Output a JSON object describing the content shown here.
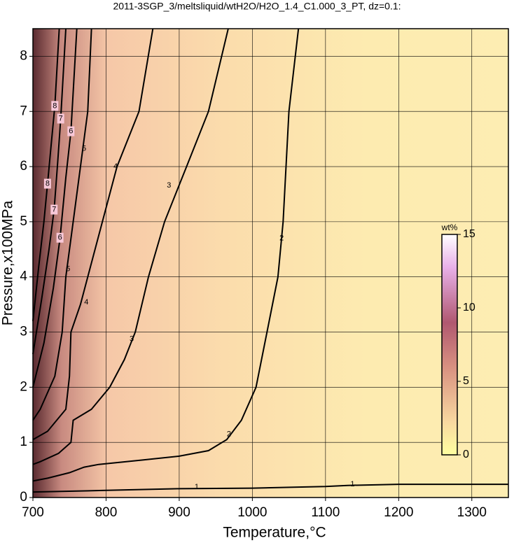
{
  "chart_data": {
    "type": "contour",
    "title": "2011-3SGP_3/meltsliquid/wtH2O/H2O_1.4_C1.000_3_PT, dz=0.1:",
    "xlabel": "Temperature,°C",
    "ylabel": "Pressure,x100MPa",
    "xlim": [
      700,
      1350
    ],
    "ylim": [
      0,
      8.5
    ],
    "xticks": [
      700,
      800,
      900,
      1000,
      1100,
      1200,
      1300
    ],
    "yticks": [
      0,
      1,
      2,
      3,
      4,
      5,
      6,
      7,
      8
    ],
    "grid": true,
    "colorbar": {
      "label": "wt%",
      "lim": [
        0,
        15
      ],
      "ticks": [
        0,
        5,
        10,
        15
      ]
    },
    "contours": [
      {
        "level": 1,
        "x": [
          700,
          800,
          900,
          1000,
          1100,
          1130,
          1200,
          1350
        ],
        "y": [
          0.1,
          0.13,
          0.16,
          0.17,
          0.2,
          0.22,
          0.24,
          0.24
        ],
        "labels": [
          {
            "x": 924,
            "y": 0.19
          },
          {
            "x": 1137,
            "y": 0.24
          }
        ]
      },
      {
        "level": 2,
        "x": [
          700,
          720,
          750,
          770,
          790,
          850,
          900,
          940,
          965,
          985,
          1005,
          1020,
          1035,
          1042,
          1050,
          1063
        ],
        "y": [
          0.3,
          0.35,
          0.45,
          0.55,
          0.6,
          0.68,
          0.75,
          0.85,
          1.05,
          1.4,
          2,
          3,
          4,
          5,
          7,
          8.5
        ],
        "labels": [
          {
            "x": 968,
            "y": 1.15
          },
          {
            "x": 1040,
            "y": 4.7
          }
        ]
      },
      {
        "level": 3,
        "x": [
          700,
          710,
          735,
          752,
          755,
          780,
          805,
          825,
          840,
          858,
          880,
          910,
          940,
          967
        ],
        "y": [
          0.6,
          0.65,
          0.8,
          1.0,
          1.4,
          1.6,
          2,
          2.5,
          3,
          4,
          5,
          6,
          7,
          8.5
        ],
        "labels": [
          {
            "x": 835,
            "y": 2.87
          },
          {
            "x": 886,
            "y": 5.66
          }
        ]
      },
      {
        "level": 4,
        "x": [
          700,
          720,
          745,
          750,
          752,
          765,
          775,
          795,
          815,
          845,
          864
        ],
        "y": [
          1.05,
          1.2,
          1.6,
          2.2,
          3,
          3.5,
          4,
          5,
          6,
          7,
          8.5
        ],
        "labels": [
          {
            "x": 773,
            "y": 3.54
          },
          {
            "x": 813,
            "y": 6.0
          }
        ]
      },
      {
        "level": 5,
        "x": [
          700,
          710,
          730,
          740,
          745,
          755,
          765,
          775,
          780
        ],
        "y": [
          1.4,
          1.6,
          2.2,
          3,
          4,
          5,
          6,
          7,
          8.5
        ],
        "labels": [
          {
            "x": 748,
            "y": 4.14
          },
          {
            "x": 770,
            "y": 6.32
          }
        ]
      },
      {
        "level": 6,
        "x": [
          700,
          715,
          728,
          737,
          745,
          752,
          760
        ],
        "y": [
          2.0,
          2.8,
          3.8,
          4.7,
          5.8,
          6.64,
          8.5
        ],
        "labels": [
          {
            "x": 737,
            "y": 4.71
          },
          {
            "x": 752,
            "y": 6.64
          }
        ]
      },
      {
        "level": 7,
        "x": [
          700,
          712,
          722,
          729,
          734,
          738,
          745
        ],
        "y": [
          2.6,
          3.6,
          4.5,
          5.22,
          6.1,
          6.87,
          8.5
        ],
        "labels": [
          {
            "x": 729,
            "y": 5.22
          },
          {
            "x": 738,
            "y": 6.87
          }
        ]
      },
      {
        "level": 8,
        "x": [
          700,
          708,
          715,
          720,
          725,
          730,
          736
        ],
        "y": [
          3.2,
          4.2,
          5.0,
          5.69,
          6.4,
          7.1,
          8.5
        ],
        "labels": [
          {
            "x": 720,
            "y": 5.69
          },
          {
            "x": 730,
            "y": 7.1
          }
        ]
      }
    ]
  }
}
